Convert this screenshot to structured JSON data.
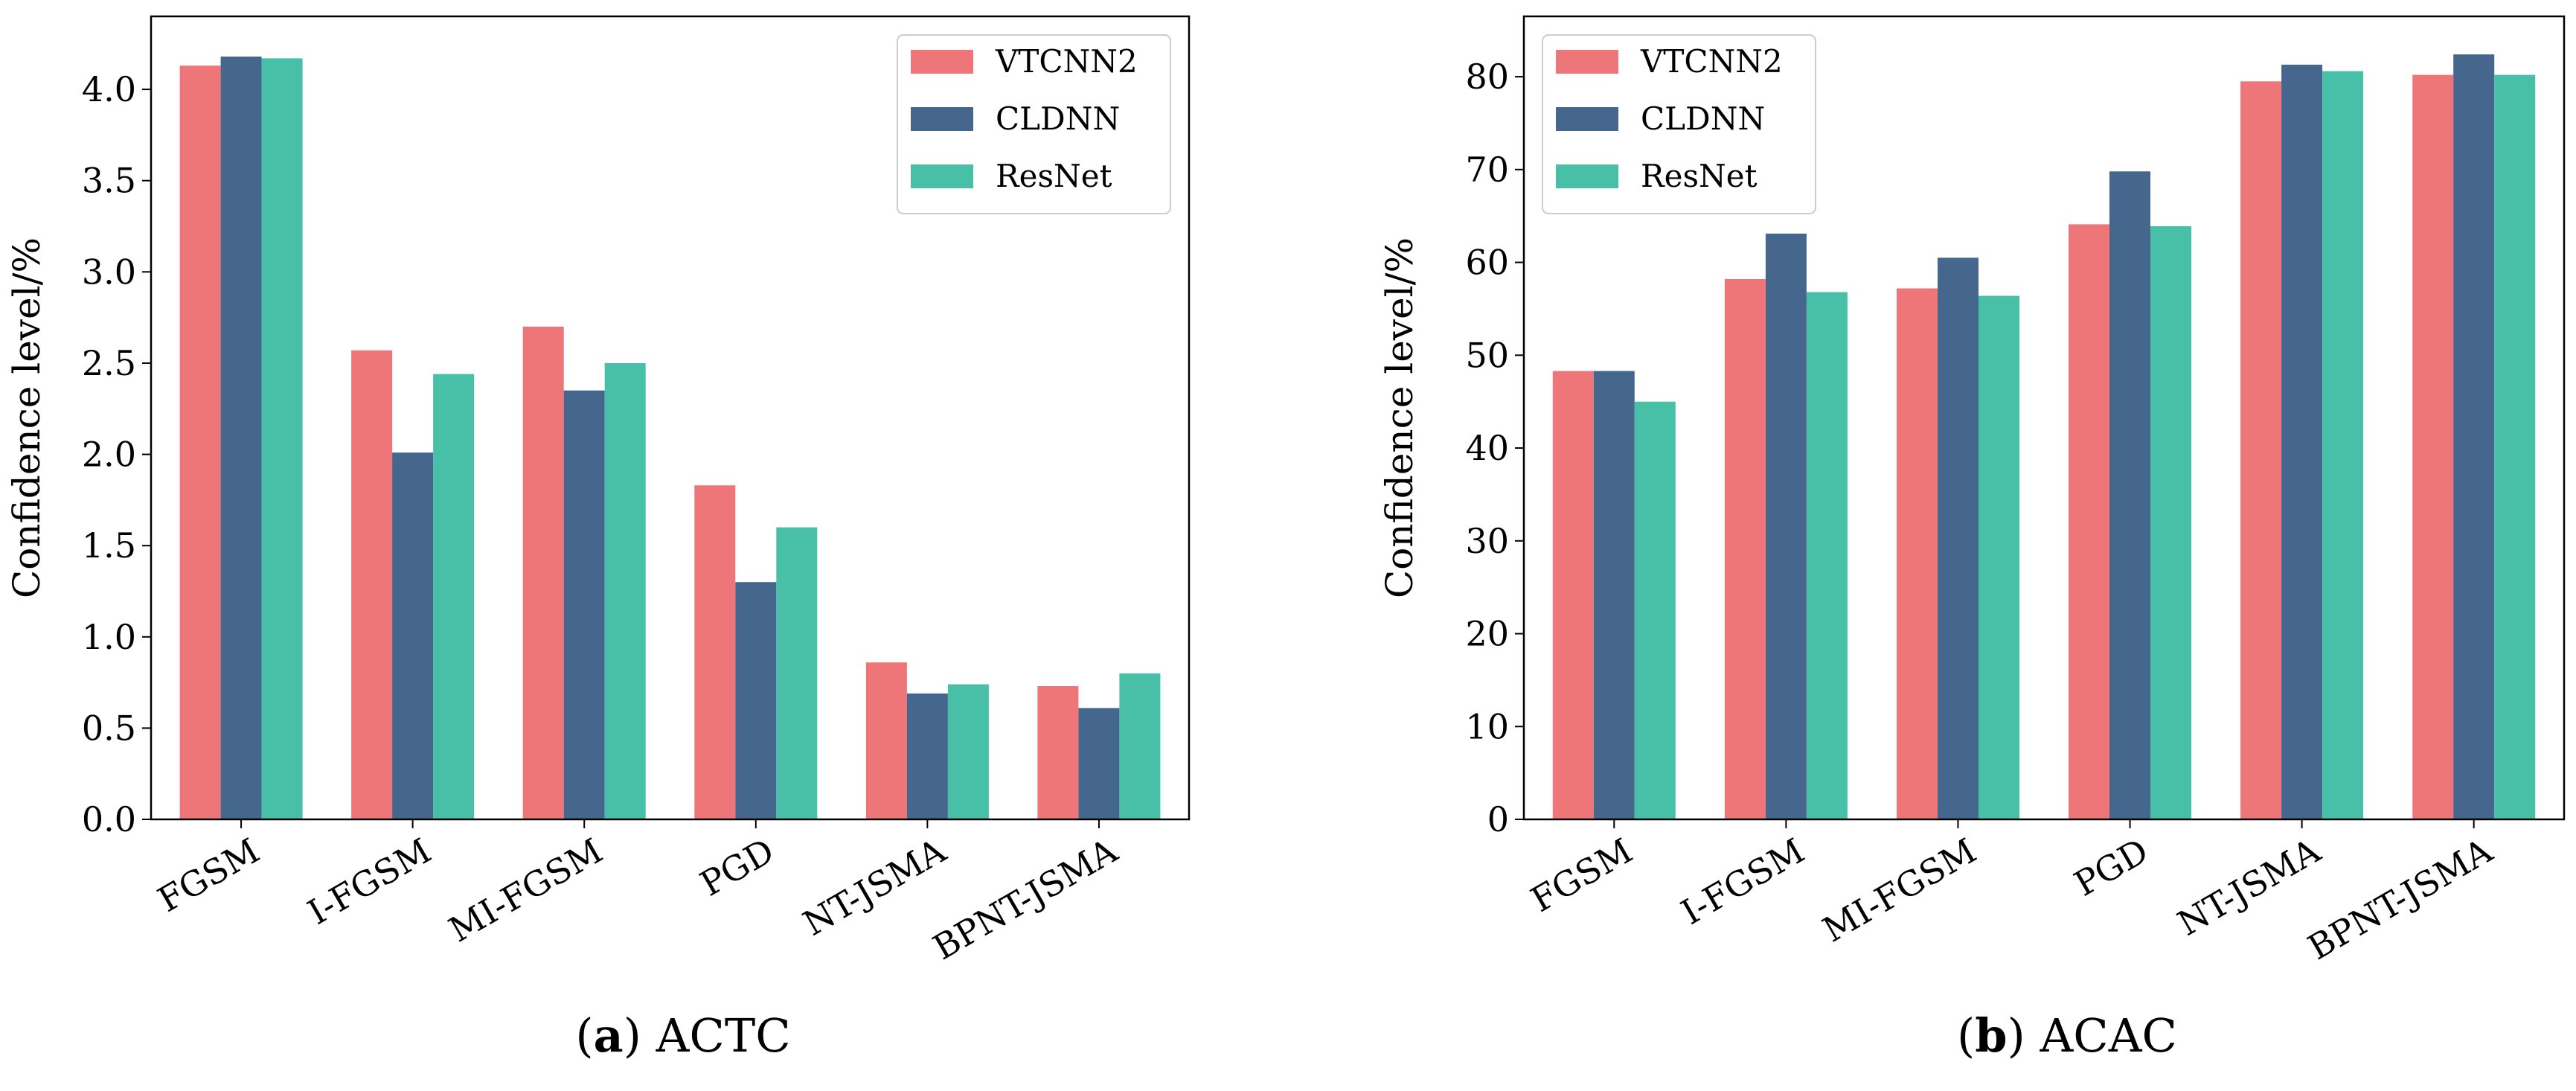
{
  "captions": [
    {
      "letter": "a",
      "text": "ACTC"
    },
    {
      "letter": "b",
      "text": "ACAC"
    }
  ],
  "chart_data": [
    {
      "type": "bar",
      "categories": [
        "FGSM",
        "I-FGSM",
        "MI-FGSM",
        "PGD",
        "NT-JSMA",
        "BPNT-JSMA"
      ],
      "series": [
        {
          "name": "VTCNN2",
          "color": "#ee7678",
          "values": [
            4.13,
            2.57,
            2.7,
            1.83,
            0.86,
            0.73
          ]
        },
        {
          "name": "CLDNN",
          "color": "#45678e",
          "values": [
            4.18,
            2.01,
            2.35,
            1.3,
            0.69,
            0.61
          ]
        },
        {
          "name": "ResNet",
          "color": "#48c0a8",
          "values": [
            4.17,
            2.44,
            2.5,
            1.6,
            0.74,
            0.8
          ]
        }
      ],
      "ylabel": "Confidence level/%",
      "xlabel": "",
      "ylim": [
        0,
        4.4
      ],
      "yticks": [
        "0.0",
        "0.5",
        "1.0",
        "1.5",
        "2.0",
        "2.5",
        "3.0",
        "3.5",
        "4.0"
      ],
      "legend": "top-right",
      "grid": false
    },
    {
      "type": "bar",
      "categories": [
        "FGSM",
        "I-FGSM",
        "MI-FGSM",
        "PGD",
        "NT-JSMA",
        "BPNT-JSMA"
      ],
      "series": [
        {
          "name": "VTCNN2",
          "color": "#ee7678",
          "values": [
            48.3,
            58.2,
            57.2,
            64.1,
            79.5,
            80.2
          ]
        },
        {
          "name": "CLDNN",
          "color": "#45678e",
          "values": [
            48.3,
            63.1,
            60.5,
            69.8,
            81.3,
            82.4
          ]
        },
        {
          "name": "ResNet",
          "color": "#48c0a8",
          "values": [
            45.0,
            56.8,
            56.4,
            63.9,
            80.6,
            80.2
          ]
        }
      ],
      "ylabel": "Confidence level/%",
      "xlabel": "",
      "ylim": [
        0,
        86.5
      ],
      "yticks": [
        "0",
        "10",
        "20",
        "30",
        "40",
        "50",
        "60",
        "70",
        "80"
      ],
      "legend": "top-left",
      "grid": false
    }
  ]
}
